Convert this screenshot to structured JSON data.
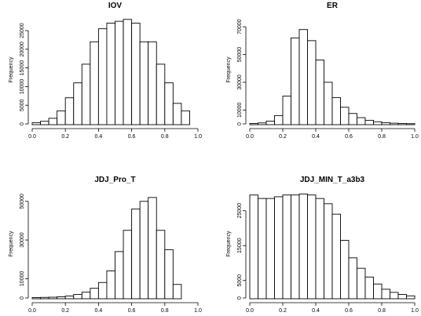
{
  "chart_data": [
    {
      "type": "bar",
      "title": "IOV",
      "ylabel": "Frequency",
      "xlabel": "",
      "bin_width": 0.05,
      "x_range": [
        0.0,
        1.0
      ],
      "x_ticks": [
        "0.0",
        "0.2",
        "0.4",
        "0.6",
        "0.8",
        "1.0"
      ],
      "y_ticks": [
        0,
        5000,
        10000,
        15000,
        20000,
        25000
      ],
      "ylim": [
        0,
        29000
      ],
      "values": [
        300,
        700,
        1500,
        3500,
        7000,
        11000,
        16000,
        22000,
        25500,
        27000,
        27500,
        28000,
        27000,
        22000,
        22000,
        16000,
        11000,
        5500,
        3500
      ]
    },
    {
      "type": "bar",
      "title": "ER",
      "ylabel": "Frequency",
      "xlabel": "",
      "bin_width": 0.05,
      "x_range": [
        0.0,
        1.0
      ],
      "x_ticks": [
        "0.0",
        "0.2",
        "0.4",
        "0.6",
        "0.8",
        "1.0"
      ],
      "y_ticks": [
        0,
        10000,
        30000,
        50000,
        70000
      ],
      "ylim": [
        0,
        78000
      ],
      "values": [
        300,
        700,
        2000,
        6000,
        20000,
        62000,
        68000,
        60000,
        46000,
        30000,
        19000,
        12000,
        7500,
        4500,
        2600,
        1500,
        900,
        500,
        300,
        150
      ]
    },
    {
      "type": "bar",
      "title": "JDJ_Pro_T",
      "ylabel": "Frequency",
      "xlabel": "",
      "bin_width": 0.05,
      "x_range": [
        0.0,
        1.0
      ],
      "x_ticks": [
        "0.0",
        "0.2",
        "0.4",
        "0.6",
        "0.8",
        "1.0"
      ],
      "y_ticks": [
        0,
        10000,
        30000,
        50000
      ],
      "ylim": [
        0,
        56000
      ],
      "values": [
        200,
        300,
        400,
        600,
        1000,
        1800,
        3000,
        5000,
        8000,
        14000,
        24000,
        35000,
        46000,
        50000,
        52000,
        35000,
        25000,
        7000
      ]
    },
    {
      "type": "bar",
      "title": "JDJ_MIN_T_a3b3",
      "ylabel": "Frequency",
      "xlabel": "",
      "bin_width": 0.05,
      "x_range": [
        0.0,
        1.0
      ],
      "x_ticks": [
        "0.0",
        "0.2",
        "0.4",
        "0.6",
        "0.8",
        "1.0"
      ],
      "y_ticks": [
        0,
        5000,
        15000,
        25000
      ],
      "ylim": [
        0,
        31000
      ],
      "values": [
        29500,
        28500,
        28500,
        29000,
        29500,
        29500,
        29800,
        29500,
        28500,
        27000,
        24000,
        16500,
        11500,
        8500,
        6000,
        4000,
        2500,
        1600,
        1000,
        600
      ]
    }
  ]
}
